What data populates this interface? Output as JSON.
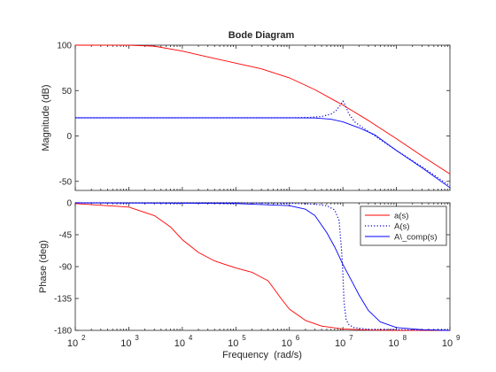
{
  "chart_data": [
    {
      "type": "line",
      "title": "Bode Diagram",
      "ylabel": "Magnitude (dB)",
      "xscale": "log",
      "xlim": [
        100,
        1000000000
      ],
      "ylim": [
        -60,
        100
      ],
      "yticks": [
        -50,
        0,
        50,
        100
      ],
      "grid": false,
      "series": [
        {
          "name": "a(s)",
          "color": "#ff0000",
          "style": "solid",
          "x": [
            100,
            1000,
            3000,
            10000,
            30000,
            100000,
            300000,
            1000000,
            3000000,
            10000000,
            30000000,
            100000000,
            300000000,
            1000000000
          ],
          "y": [
            100,
            99.9,
            98.9,
            93.5,
            87,
            80.2,
            74,
            64,
            51,
            34,
            17,
            -3,
            -22,
            -42
          ]
        },
        {
          "name": "A(s)",
          "color": "#0000cc",
          "style": "dotted",
          "x": [
            100,
            1000000,
            2500000,
            4000000,
            6000000,
            7500000,
            9000000,
            10000000,
            11000000,
            13000000,
            17000000,
            25000000,
            40000000,
            100000000,
            300000000,
            1000000000
          ],
          "y": [
            20,
            20,
            20.5,
            21.5,
            24,
            28,
            34,
            38.5,
            34,
            24,
            15,
            8,
            0,
            -16,
            -34,
            -55
          ]
        },
        {
          "name": "A\\_comp(s)",
          "color": "#0000ff",
          "style": "solid",
          "x": [
            100,
            1000000,
            3000000,
            6000000,
            10000000,
            20000000,
            40000000,
            100000000,
            300000000,
            1000000000
          ],
          "y": [
            20,
            20,
            19.8,
            18.5,
            15.5,
            9,
            1,
            -16,
            -35,
            -57
          ]
        }
      ]
    },
    {
      "type": "line",
      "xlabel": "Frequency  (rad/s)",
      "ylabel": "Phase (deg)",
      "xscale": "log",
      "xlim": [
        100,
        1000000000
      ],
      "ylim": [
        -180,
        0
      ],
      "yticks": [
        -180,
        -135,
        -90,
        -45,
        0
      ],
      "xticks": [
        "10",
        "10",
        "10",
        "10",
        "10",
        "10",
        "10",
        "10"
      ],
      "xtick_exponents": [
        "2",
        "3",
        "4",
        "5",
        "6",
        "7",
        "8",
        "9"
      ],
      "grid": false,
      "legend": {
        "position": "top-right",
        "entries": [
          "a(s)",
          "A(s)",
          "A\\_comp(s)"
        ],
        "display": [
          "a(s)",
          "A(s)",
          "A\\_comp(s)"
        ]
      },
      "series": [
        {
          "name": "a(s)",
          "color": "#ff0000",
          "style": "solid",
          "x": [
            100,
            1000,
            3000,
            6000,
            10000,
            20000,
            40000,
            100000,
            200000,
            400000,
            700000,
            1000000,
            2000000,
            4000000,
            10000000,
            30000000,
            100000000,
            1000000000
          ],
          "y": [
            -1,
            -6,
            -18,
            -34,
            -52,
            -70,
            -82,
            -92,
            -98,
            -110,
            -135,
            -150,
            -166,
            -174,
            -178,
            -179.5,
            -180,
            -180
          ]
        },
        {
          "name": "A(s)",
          "color": "#0000cc",
          "style": "dotted",
          "x": [
            100,
            100000,
            1000000,
            3000000,
            5000000,
            7000000,
            8500000,
            9500000,
            10000000,
            10500000,
            11500000,
            13000000,
            16000000,
            30000000,
            1000000000
          ],
          "y": [
            0,
            0,
            -0.5,
            -2,
            -4,
            -10,
            -25,
            -70,
            -100,
            -140,
            -165,
            -172,
            -176,
            -178.5,
            -180
          ]
        },
        {
          "name": "A\\_comp(s)",
          "color": "#0000ff",
          "style": "solid",
          "x": [
            100,
            10000,
            100000,
            1000000,
            2000000,
            3000000,
            5000000,
            7000000,
            10000000,
            15000000,
            20000000,
            30000000,
            50000000,
            100000000,
            300000000,
            1000000000
          ],
          "y": [
            0,
            -0.5,
            -1,
            -4,
            -9,
            -18,
            -42,
            -62,
            -87,
            -112,
            -130,
            -152,
            -168,
            -176,
            -179,
            -180
          ]
        }
      ]
    }
  ]
}
